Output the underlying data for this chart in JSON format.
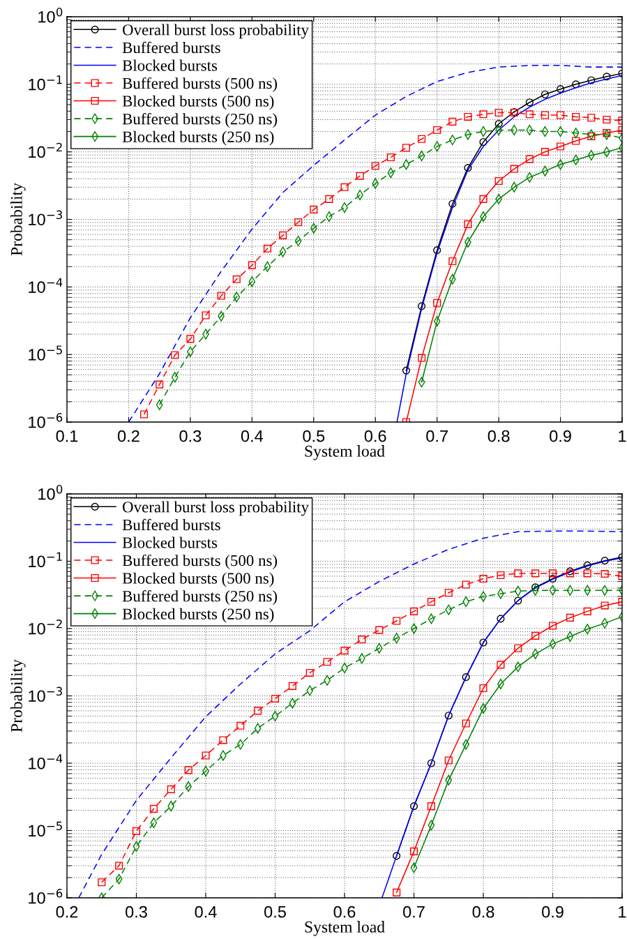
{
  "chart_data": [
    {
      "type": "line",
      "xlabel": "System load",
      "ylabel": "Probability",
      "log": "y",
      "grid": true,
      "legend": "top left",
      "xlim": [
        0.1,
        1
      ],
      "xticks": [
        0.1,
        0.2,
        0.3,
        0.4,
        0.5,
        0.6,
        0.7,
        0.8,
        0.9,
        1
      ],
      "ylim": [
        1e-06,
        1
      ],
      "yticks": [
        {
          "value": 1e-06,
          "label": "10$^{−6}$"
        },
        {
          "value": 1e-05,
          "label": "10$^{−5}$"
        },
        {
          "value": 0.0001,
          "label": "10$^{−4}$"
        },
        {
          "value": 0.001,
          "label": "10$^{−3}$"
        },
        {
          "value": 0.01,
          "label": "10$^{−2}$"
        },
        {
          "value": 0.1,
          "label": "10$^{−1}$"
        },
        {
          "value": 1,
          "label": "10$^{0}$"
        }
      ],
      "series": [
        {
          "name": "Overall burst loss probability",
          "color": "#000000",
          "marker": "circle",
          "line_style": "solid",
          "x": [
            0.65,
            0.675,
            0.7,
            0.725,
            0.75,
            0.775,
            0.8,
            0.825,
            0.85,
            0.875,
            0.9,
            0.925,
            0.95,
            0.975,
            1.0
          ],
          "values": [
            5.8e-06,
            5.2e-05,
            0.00035,
            0.0017,
            0.0058,
            0.014,
            0.026,
            0.039,
            0.054,
            0.071,
            0.085,
            0.1,
            0.115,
            0.13,
            0.145
          ]
        },
        {
          "name": "Buffered bursts",
          "color": "#0000ff",
          "marker": "none",
          "line_style": "dashed",
          "x": [
            0.2,
            0.25,
            0.3,
            0.35,
            0.4,
            0.45,
            0.5,
            0.55,
            0.6,
            0.65,
            0.7,
            0.75,
            0.8,
            0.85,
            0.9,
            0.95,
            1.0
          ],
          "values": [
            1e-06,
            5.2e-06,
            3.5e-05,
            0.00017,
            0.00072,
            0.0025,
            0.0063,
            0.015,
            0.035,
            0.066,
            0.11,
            0.15,
            0.18,
            0.19,
            0.19,
            0.18,
            0.18
          ]
        },
        {
          "name": "Blocked bursts",
          "color": "#0000ff",
          "marker": "none",
          "line_style": "solid",
          "x": [
            0.635,
            0.65,
            0.675,
            0.7,
            0.725,
            0.75,
            0.775,
            0.8,
            0.825,
            0.85,
            0.875,
            0.9,
            0.925,
            0.95,
            0.975,
            1.0
          ],
          "values": [
            1e-06,
            5.2e-06,
            4.8e-05,
            0.00032,
            0.0015,
            0.0054,
            0.012,
            0.021,
            0.033,
            0.046,
            0.06,
            0.074,
            0.089,
            0.105,
            0.12,
            0.135
          ]
        },
        {
          "name": "Buffered bursts (500 ns)",
          "color": "#ff0000",
          "marker": "square",
          "line_style": "dashed",
          "x": [
            0.225,
            0.25,
            0.275,
            0.3,
            0.325,
            0.35,
            0.375,
            0.4,
            0.425,
            0.45,
            0.475,
            0.5,
            0.525,
            0.55,
            0.575,
            0.6,
            0.625,
            0.65,
            0.675,
            0.7,
            0.725,
            0.75,
            0.775,
            0.8,
            0.825,
            0.85,
            0.875,
            0.9,
            0.925,
            0.95,
            0.975,
            1.0
          ],
          "values": [
            1.3e-06,
            3.6e-06,
            9.8e-06,
            1.7e-05,
            3.8e-05,
            7.4e-05,
            0.00013,
            0.00021,
            0.00037,
            0.00058,
            0.00091,
            0.0014,
            0.002,
            0.003,
            0.0044,
            0.0062,
            0.0083,
            0.0115,
            0.0155,
            0.021,
            0.028,
            0.033,
            0.036,
            0.038,
            0.038,
            0.036,
            0.035,
            0.035,
            0.033,
            0.032,
            0.03,
            0.029
          ]
        },
        {
          "name": "Blocked bursts (500 ns)",
          "color": "#ff0000",
          "marker": "square",
          "line_style": "solid",
          "x": [
            0.65,
            0.675,
            0.7,
            0.725,
            0.75,
            0.775,
            0.8,
            0.825,
            0.85,
            0.875,
            0.9,
            0.925,
            0.95,
            0.975,
            1.0
          ],
          "values": [
            1e-06,
            8.9e-06,
            5.8e-05,
            0.00024,
            0.00085,
            0.002,
            0.0037,
            0.0056,
            0.0078,
            0.01,
            0.012,
            0.0145,
            0.017,
            0.019,
            0.021
          ]
        },
        {
          "name": "Buffered bursts (250 ns)",
          "color": "#008000",
          "marker": "diamond",
          "line_style": "dashed",
          "x": [
            0.25,
            0.275,
            0.3,
            0.325,
            0.35,
            0.375,
            0.4,
            0.425,
            0.45,
            0.475,
            0.5,
            0.525,
            0.55,
            0.575,
            0.6,
            0.625,
            0.65,
            0.675,
            0.7,
            0.725,
            0.75,
            0.775,
            0.8,
            0.825,
            0.85,
            0.875,
            0.9,
            0.925,
            0.95,
            0.975,
            1.0
          ],
          "values": [
            1.8e-06,
            4.6e-06,
            1.1e-05,
            2e-05,
            3.7e-05,
            7.1e-05,
            0.00012,
            0.0002,
            0.00033,
            0.00048,
            0.00074,
            0.0011,
            0.0015,
            0.0023,
            0.0034,
            0.0049,
            0.0065,
            0.0087,
            0.012,
            0.015,
            0.018,
            0.02,
            0.021,
            0.021,
            0.021,
            0.02,
            0.02,
            0.019,
            0.018,
            0.018,
            0.016
          ]
        },
        {
          "name": "Blocked bursts (250 ns)",
          "color": "#008000",
          "marker": "diamond",
          "line_style": "solid",
          "x": [
            0.675,
            0.7,
            0.725,
            0.75,
            0.775,
            0.8,
            0.825,
            0.85,
            0.875,
            0.9,
            0.925,
            0.95,
            0.975,
            1.0
          ],
          "values": [
            3.9e-06,
            3.1e-05,
            0.00013,
            0.00046,
            0.0011,
            0.002,
            0.003,
            0.0042,
            0.0052,
            0.0065,
            0.0076,
            0.0089,
            0.01,
            0.0115
          ]
        }
      ]
    },
    {
      "type": "line",
      "xlabel": "System load",
      "ylabel": "Probability",
      "log": "y",
      "grid": true,
      "legend": "top left",
      "xlim": [
        0.2,
        1
      ],
      "xticks": [
        0.2,
        0.3,
        0.4,
        0.5,
        0.6,
        0.7,
        0.8,
        0.9,
        1
      ],
      "ylim": [
        1e-06,
        1
      ],
      "yticks": [
        {
          "value": 1e-06,
          "label": "10$^{−6}$"
        },
        {
          "value": 1e-05,
          "label": "10$^{−5}$"
        },
        {
          "value": 0.0001,
          "label": "10$^{−4}$"
        },
        {
          "value": 0.001,
          "label": "10$^{−3}$"
        },
        {
          "value": 0.01,
          "label": "10$^{−2}$"
        },
        {
          "value": 0.1,
          "label": "10$^{−1}$"
        },
        {
          "value": 1,
          "label": "10$^{0}$"
        }
      ],
      "series": [
        {
          "name": "Overall burst loss probability",
          "color": "#000000",
          "marker": "circle",
          "line_style": "solid",
          "x": [
            0.675,
            0.7,
            0.725,
            0.75,
            0.775,
            0.8,
            0.825,
            0.85,
            0.875,
            0.9,
            0.925,
            0.95,
            0.975,
            1.0
          ],
          "values": [
            4.2e-06,
            2.3e-05,
            0.0001,
            0.00051,
            0.0019,
            0.0062,
            0.014,
            0.026,
            0.041,
            0.055,
            0.071,
            0.087,
            0.102,
            0.115
          ]
        },
        {
          "name": "Buffered bursts",
          "color": "#0000ff",
          "marker": "none",
          "line_style": "dashed",
          "x": [
            0.217,
            0.25,
            0.3,
            0.35,
            0.4,
            0.45,
            0.5,
            0.55,
            0.6,
            0.65,
            0.7,
            0.75,
            0.8,
            0.85,
            0.9,
            0.95,
            1.0
          ],
          "values": [
            1e-06,
            4.4e-06,
            2.8e-05,
            0.00012,
            0.00049,
            0.0015,
            0.0042,
            0.0093,
            0.025,
            0.05,
            0.091,
            0.15,
            0.22,
            0.275,
            0.28,
            0.28,
            0.275
          ]
        },
        {
          "name": "Blocked bursts",
          "color": "#0000ff",
          "marker": "none",
          "line_style": "solid",
          "x": [
            0.654,
            0.675,
            0.7,
            0.725,
            0.75,
            0.775,
            0.8,
            0.825,
            0.85,
            0.875,
            0.9,
            0.925,
            0.95,
            0.975,
            1.0
          ],
          "values": [
            1e-06,
            4.2e-06,
            2.3e-05,
            0.0001,
            0.00051,
            0.0019,
            0.0062,
            0.014,
            0.026,
            0.04,
            0.054,
            0.069,
            0.085,
            0.1,
            0.112
          ]
        },
        {
          "name": "Buffered bursts (500 ns)",
          "color": "#ff0000",
          "marker": "square",
          "line_style": "dashed",
          "x": [
            0.25,
            0.275,
            0.3,
            0.325,
            0.35,
            0.375,
            0.4,
            0.425,
            0.45,
            0.475,
            0.5,
            0.525,
            0.55,
            0.575,
            0.6,
            0.625,
            0.65,
            0.675,
            0.7,
            0.725,
            0.75,
            0.775,
            0.8,
            0.825,
            0.85,
            0.875,
            0.9,
            0.925,
            0.95,
            0.975,
            1.0
          ],
          "values": [
            1.7e-06,
            3e-06,
            9.8e-06,
            2.1e-05,
            4.1e-05,
            7.9e-05,
            0.00013,
            0.00022,
            0.00036,
            0.0006,
            0.00091,
            0.0014,
            0.0022,
            0.0032,
            0.0047,
            0.0069,
            0.0095,
            0.013,
            0.018,
            0.025,
            0.034,
            0.045,
            0.055,
            0.062,
            0.066,
            0.066,
            0.066,
            0.066,
            0.066,
            0.065,
            0.06
          ]
        },
        {
          "name": "Blocked bursts (500 ns)",
          "color": "#ff0000",
          "marker": "square",
          "line_style": "solid",
          "x": [
            0.675,
            0.7,
            0.725,
            0.75,
            0.775,
            0.8,
            0.825,
            0.85,
            0.875,
            0.9,
            0.925,
            0.95,
            0.975,
            1.0
          ],
          "values": [
            1.2e-06,
            4.9e-06,
            2.3e-05,
            0.00011,
            0.00039,
            0.0013,
            0.0029,
            0.0051,
            0.0078,
            0.011,
            0.0145,
            0.018,
            0.022,
            0.025
          ]
        },
        {
          "name": "Buffered bursts (250 ns)",
          "color": "#008000",
          "marker": "diamond",
          "line_style": "dashed",
          "x": [
            0.25,
            0.275,
            0.3,
            0.325,
            0.35,
            0.375,
            0.4,
            0.425,
            0.45,
            0.475,
            0.5,
            0.525,
            0.55,
            0.575,
            0.6,
            0.625,
            0.65,
            0.675,
            0.7,
            0.725,
            0.75,
            0.775,
            0.8,
            0.825,
            0.85,
            0.875,
            0.9,
            0.925,
            0.95,
            0.975,
            1.0
          ],
          "values": [
            1e-06,
            1.9e-06,
            5.8e-06,
            1.3e-05,
            2.3e-05,
            4.5e-05,
            7.6e-05,
            0.00013,
            0.00019,
            0.00033,
            0.0005,
            0.00078,
            0.0012,
            0.0017,
            0.0026,
            0.0036,
            0.0051,
            0.0072,
            0.01,
            0.014,
            0.019,
            0.025,
            0.03,
            0.033,
            0.036,
            0.037,
            0.037,
            0.037,
            0.037,
            0.037,
            0.037
          ]
        },
        {
          "name": "Blocked bursts (250 ns)",
          "color": "#008000",
          "marker": "diamond",
          "line_style": "solid",
          "x": [
            0.7,
            0.725,
            0.75,
            0.775,
            0.8,
            0.825,
            0.85,
            0.875,
            0.9,
            0.925,
            0.95,
            0.975,
            1.0
          ],
          "values": [
            2.8e-06,
            1.2e-05,
            5.6e-05,
            0.00019,
            0.00065,
            0.0015,
            0.0027,
            0.0042,
            0.0059,
            0.0076,
            0.0098,
            0.012,
            0.015
          ]
        }
      ]
    }
  ]
}
